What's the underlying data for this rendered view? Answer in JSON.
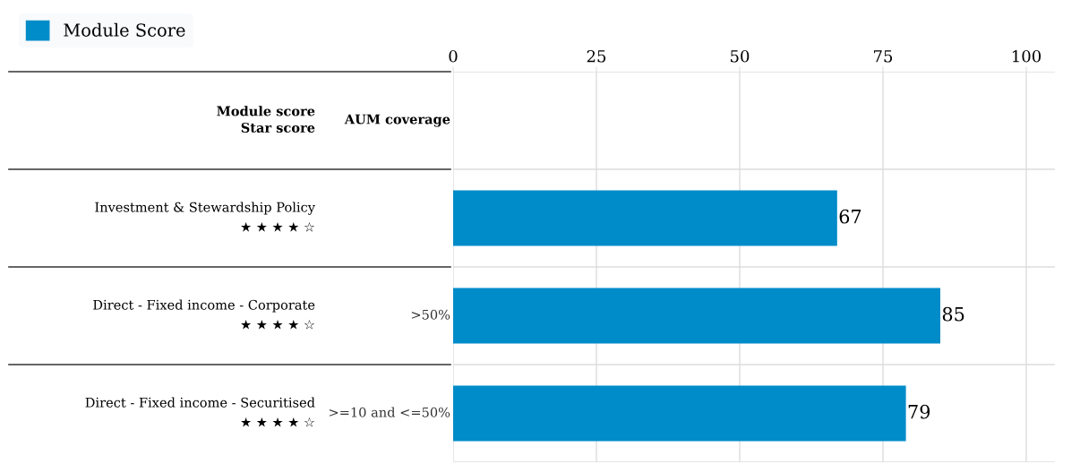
{
  "chart_data": {
    "type": "bar",
    "orientation": "horizontal",
    "categories": [
      "Investment & Stewardship Policy\n★ ★ ★ ★ ☆",
      "Direct - Fixed income - Corporate\n★ ★ ★ ★ ☆",
      "Direct - Fixed income - Securitised\n★ ★ ★ ★ ☆"
    ],
    "series": [
      {
        "name": "Module Score",
        "color": "#008bc9",
        "values": [
          67,
          85,
          79
        ]
      }
    ],
    "data_labels": true,
    "x2lim": [
      0,
      105
    ],
    "x2ticks": [
      0,
      25,
      50,
      75,
      100
    ],
    "grid": true,
    "legend": "top left",
    "annotations": [
      "Module score\nStar score",
      "AUM coverage",
      ">50%",
      ">=10 and <=50%"
    ]
  }
}
